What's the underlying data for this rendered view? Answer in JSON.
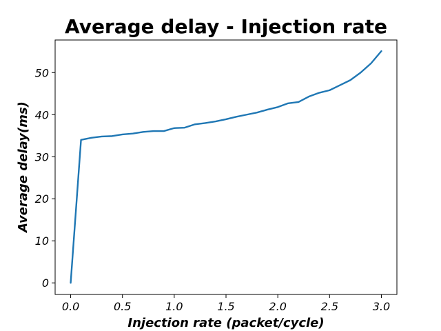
{
  "chart_data": {
    "type": "line",
    "title": "Average delay - Injection rate",
    "xlabel": "Injection rate (packet/cycle)",
    "ylabel": "Average delay(ms)",
    "xlim": [
      -0.15,
      3.15
    ],
    "ylim": [
      -2.75,
      57.75
    ],
    "x_ticks": [
      0.0,
      0.5,
      1.0,
      1.5,
      2.0,
      2.5,
      3.0
    ],
    "x_tick_labels": [
      "0.0",
      "0.5",
      "1.0",
      "1.5",
      "2.0",
      "2.5",
      "3.0"
    ],
    "y_ticks": [
      0,
      10,
      20,
      30,
      40,
      50
    ],
    "y_tick_labels": [
      "0",
      "10",
      "20",
      "30",
      "40",
      "50"
    ],
    "grid": false,
    "series": [
      {
        "color": "#1f77b4",
        "x": [
          0.0,
          0.1,
          0.2,
          0.3,
          0.4,
          0.5,
          0.6,
          0.7,
          0.8,
          0.9,
          1.0,
          1.1,
          1.2,
          1.3,
          1.4,
          1.5,
          1.6,
          1.7,
          1.8,
          1.9,
          2.0,
          2.1,
          2.2,
          2.3,
          2.4,
          2.5,
          2.6,
          2.7,
          2.8,
          2.9,
          3.0
        ],
        "values": [
          0,
          34.0,
          34.5,
          34.8,
          34.9,
          35.3,
          35.5,
          35.9,
          36.1,
          36.1,
          36.8,
          36.9,
          37.7,
          38.0,
          38.4,
          38.9,
          39.5,
          40.0,
          40.5,
          41.2,
          41.8,
          42.7,
          43.0,
          44.3,
          45.2,
          45.8,
          47.0,
          48.2,
          50.0,
          52.2,
          55.1
        ]
      }
    ]
  }
}
